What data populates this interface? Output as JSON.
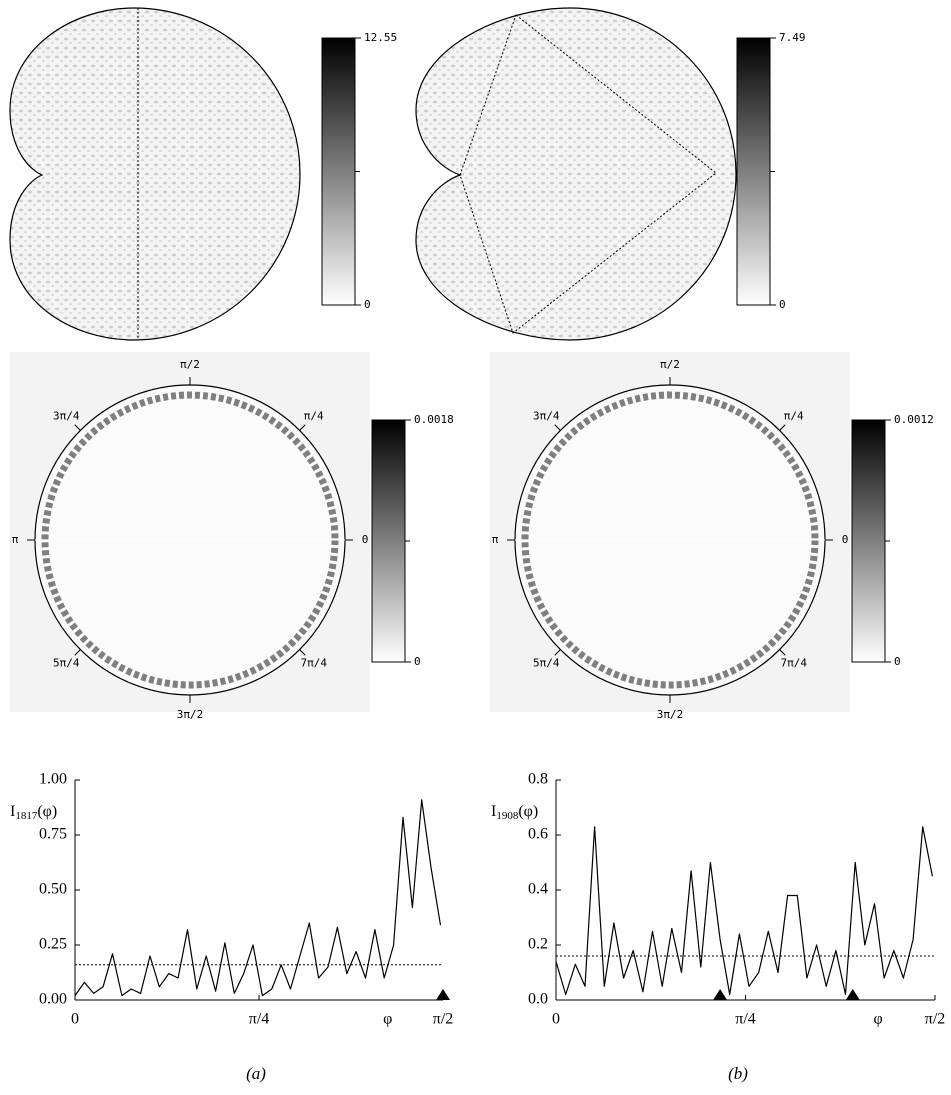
{
  "chart_data": [
    {
      "type": "heatmap",
      "clim": [
        0,
        12.55
      ],
      "cticks": [
        0,
        12.55
      ]
    },
    {
      "type": "heatmap",
      "clim": [
        0,
        7.49
      ],
      "cticks": [
        0,
        7.49
      ]
    },
    {
      "type": "polar",
      "clim": [
        0,
        0.0018
      ],
      "cticks": [
        0,
        0.0018
      ],
      "angle_labels": [
        0,
        {
          "value": 0.7854,
          "label": "π/4"
        },
        {
          "value": 1.5708,
          "label": "π/2"
        },
        {
          "value": 2.3562,
          "label": "3π/4"
        },
        {
          "value": 3.1416,
          "label": "π"
        },
        {
          "value": 3.927,
          "label": "5π/4"
        },
        {
          "value": 4.7124,
          "label": "3π/2"
        },
        {
          "value": 5.4978,
          "label": "7π/4"
        }
      ]
    },
    {
      "type": "polar",
      "clim": [
        0,
        0.0012
      ],
      "cticks": [
        0,
        0.0012
      ],
      "angle_labels": [
        0,
        {
          "value": 0.7854,
          "label": "π/4"
        },
        {
          "value": 1.5708,
          "label": "π/2"
        },
        {
          "value": 2.3562,
          "label": "3π/4"
        },
        {
          "value": 3.1416,
          "label": "π"
        },
        {
          "value": 3.927,
          "label": "5π/4"
        },
        {
          "value": 4.7124,
          "label": "3π/2"
        },
        {
          "value": 5.4978,
          "label": "7π/4"
        }
      ]
    },
    {
      "type": "line",
      "ylabel": [
        "I",
        "1817",
        "(φ)"
      ],
      "xlabel": "φ",
      "xlim": [
        0,
        1.5708
      ],
      "ylim": [
        0,
        1
      ],
      "xticks": [
        0,
        {
          "value": 0.7854,
          "label": "π/4"
        },
        {
          "value": 1.5708,
          "label": "π/2"
        }
      ],
      "yticks": [
        {
          "value": 0,
          "label": "0.00"
        },
        {
          "value": 0.25,
          "label": "0.25"
        },
        {
          "value": 0.5,
          "label": "0.50"
        },
        {
          "value": 0.75,
          "label": "0.75"
        },
        {
          "value": 1,
          "label": "1.00"
        }
      ],
      "hline": 0.16,
      "markers_x": [
        1.5708
      ],
      "color": "#000000",
      "x": [
        0,
        0.04,
        0.08,
        0.12,
        0.16,
        0.2,
        0.24,
        0.28,
        0.32,
        0.36,
        0.4,
        0.44,
        0.48,
        0.52,
        0.56,
        0.6,
        0.64,
        0.68,
        0.72,
        0.76,
        0.8,
        0.84,
        0.88,
        0.92,
        0.96,
        1.0,
        1.04,
        1.08,
        1.12,
        1.16,
        1.2,
        1.24,
        1.28,
        1.32,
        1.36,
        1.4,
        1.44,
        1.48,
        1.52,
        1.56
      ],
      "values": [
        0.02,
        0.08,
        0.03,
        0.06,
        0.21,
        0.02,
        0.05,
        0.03,
        0.2,
        0.06,
        0.12,
        0.1,
        0.32,
        0.05,
        0.2,
        0.04,
        0.26,
        0.03,
        0.12,
        0.25,
        0.02,
        0.05,
        0.16,
        0.05,
        0.2,
        0.35,
        0.1,
        0.15,
        0.33,
        0.12,
        0.22,
        0.1,
        0.32,
        0.1,
        0.25,
        0.83,
        0.42,
        0.91,
        0.6,
        0.34
      ]
    },
    {
      "type": "line",
      "ylabel": [
        "I",
        "1908",
        "(φ)"
      ],
      "xlabel": "φ",
      "xlim": [
        0,
        1.5708
      ],
      "ylim": [
        0,
        0.8
      ],
      "xticks": [
        0,
        {
          "value": 0.7854,
          "label": "π/4"
        },
        {
          "value": 1.5708,
          "label": "π/2"
        }
      ],
      "yticks": [
        {
          "value": 0,
          "label": "0.0"
        },
        0.2,
        0.4,
        0.6,
        0.8
      ],
      "hline": 0.16,
      "markers_x": [
        0.68,
        1.23
      ],
      "color": "#000000",
      "x": [
        0,
        0.04,
        0.08,
        0.12,
        0.16,
        0.2,
        0.24,
        0.28,
        0.32,
        0.36,
        0.4,
        0.44,
        0.48,
        0.52,
        0.56,
        0.6,
        0.64,
        0.68,
        0.72,
        0.76,
        0.8,
        0.84,
        0.88,
        0.92,
        0.96,
        1.0,
        1.04,
        1.08,
        1.12,
        1.16,
        1.2,
        1.24,
        1.28,
        1.32,
        1.36,
        1.4,
        1.44,
        1.48,
        1.52,
        1.56
      ],
      "values": [
        0.14,
        0.02,
        0.13,
        0.05,
        0.63,
        0.05,
        0.28,
        0.08,
        0.18,
        0.03,
        0.25,
        0.05,
        0.26,
        0.1,
        0.47,
        0.12,
        0.5,
        0.22,
        0.02,
        0.24,
        0.05,
        0.1,
        0.25,
        0.1,
        0.38,
        0.38,
        0.08,
        0.2,
        0.05,
        0.18,
        0.02,
        0.5,
        0.2,
        0.35,
        0.08,
        0.18,
        0.08,
        0.22,
        0.63,
        0.45
      ]
    }
  ],
  "captions": [
    "(a)",
    "(b)"
  ]
}
